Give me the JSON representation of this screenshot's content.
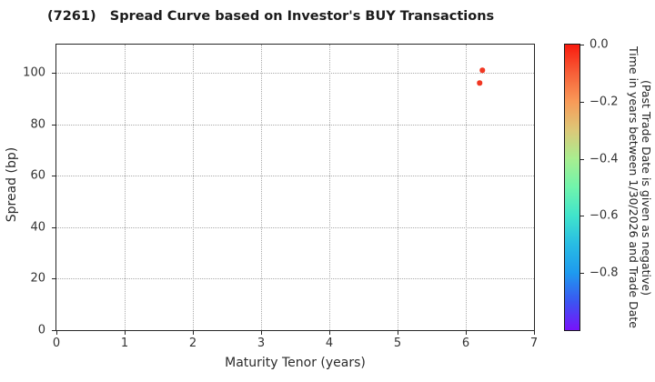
{
  "chart_data": {
    "type": "scatter",
    "title": "(7261)   Spread Curve based on Investor's BUY Transactions",
    "xlabel": "Maturity Tenor (years)",
    "ylabel": "Spread (bp)",
    "xlim": [
      0,
      7
    ],
    "ylim": [
      0,
      111
    ],
    "xticks": [
      0,
      1,
      2,
      3,
      4,
      5,
      6,
      7
    ],
    "yticks": [
      0,
      20,
      40,
      60,
      80,
      100
    ],
    "grid": true,
    "grid_style": "dotted",
    "points": [
      {
        "x": 6.24,
        "y": 101.0,
        "time_years": -0.03,
        "color": "#f13722"
      },
      {
        "x": 6.2,
        "y": 96.0,
        "time_years": -0.04,
        "color": "#f13722"
      }
    ],
    "colorbar": {
      "label_line1": "Time in years between 1/30/2026 and Trade Date",
      "label_line2": "(Past Trade Date is given as negative)",
      "range": [
        -1.0,
        0.0
      ],
      "ticks": [
        {
          "label": "0.0",
          "value": 0.0
        },
        {
          "label": "−0.2",
          "value": -0.2
        },
        {
          "label": "−0.4",
          "value": -0.4
        },
        {
          "label": "−0.6",
          "value": -0.6
        },
        {
          "label": "−0.8",
          "value": -0.8
        }
      ],
      "colormap": "rainbow",
      "gradient_stops": [
        "#f81b0e",
        "#f75f38",
        "#f89a58",
        "#dcc878",
        "#a8ee90",
        "#70f4ac",
        "#40e4cc",
        "#28bce4",
        "#1e9aee",
        "#3b55f2",
        "#7812fa"
      ]
    }
  }
}
